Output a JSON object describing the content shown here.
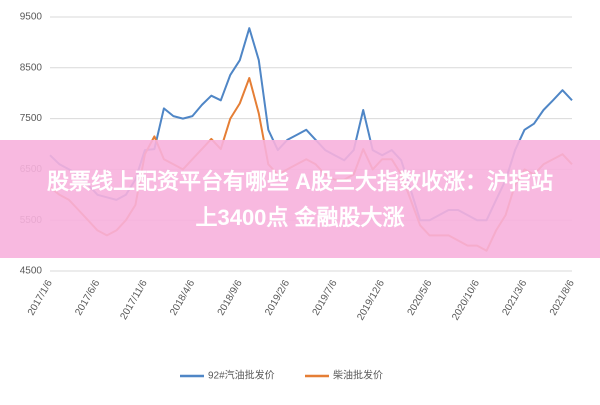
{
  "chart_data": {
    "type": "line",
    "categories": [
      "2017/1/6",
      null,
      null,
      null,
      null,
      "2017/6/6",
      null,
      null,
      null,
      null,
      "2017/11/6",
      null,
      null,
      null,
      null,
      "2018/4/6",
      null,
      null,
      null,
      null,
      "2018/9/6",
      null,
      null,
      null,
      null,
      "2019/2/6",
      null,
      null,
      null,
      null,
      "2019/7/6",
      null,
      null,
      null,
      null,
      "2019/12/6",
      null,
      null,
      null,
      null,
      "2020/5/6",
      null,
      null,
      null,
      null,
      "2020/10/6",
      null,
      null,
      null,
      null,
      "2021/3/6",
      null,
      null,
      null,
      null,
      "2021/8/6"
    ],
    "series": [
      {
        "name": "92#汽油批发价",
        "color": "#4f86c6",
        "values": [
          6780,
          6600,
          6500,
          6400,
          6200,
          6000,
          5950,
          5900,
          6000,
          6300,
          6880,
          6900,
          7700,
          7550,
          7500,
          7550,
          7770,
          7950,
          7860,
          8360,
          8650,
          9280,
          8650,
          7280,
          6880,
          7080,
          7180,
          7280,
          7080,
          6880,
          6780,
          6680,
          6880,
          7670,
          6880,
          6780,
          6880,
          6680,
          6100,
          5500,
          5500,
          5600,
          5700,
          5700,
          5600,
          5500,
          5500,
          5900,
          6290,
          6880,
          7280,
          7400,
          7670,
          7860,
          8060,
          7860
        ]
      },
      {
        "name": "柴油批发价",
        "color": "#e57e35",
        "values": [
          6150,
          6000,
          5900,
          5700,
          5500,
          5300,
          5200,
          5300,
          5500,
          5800,
          6800,
          7150,
          6700,
          6600,
          6500,
          6700,
          6900,
          7100,
          6900,
          7500,
          7800,
          8300,
          7600,
          6600,
          6400,
          6500,
          6600,
          6700,
          6600,
          6400,
          6300,
          6300,
          6400,
          6900,
          6500,
          6700,
          6700,
          6400,
          5900,
          5400,
          5200,
          5200,
          5200,
          5100,
          5000,
          5000,
          4900,
          5300,
          5600,
          6200,
          6500,
          6400,
          6600,
          6700,
          6800,
          6600
        ]
      }
    ],
    "ylim": [
      4500,
      9500
    ],
    "yticks": [
      4500,
      5500,
      6500,
      7500,
      8500,
      9500
    ],
    "grid": true
  },
  "overlay": {
    "lines": [
      "股票线上配资平台有哪些 A股三大指数收涨：沪指站",
      "上3400点 金融股大涨"
    ]
  }
}
